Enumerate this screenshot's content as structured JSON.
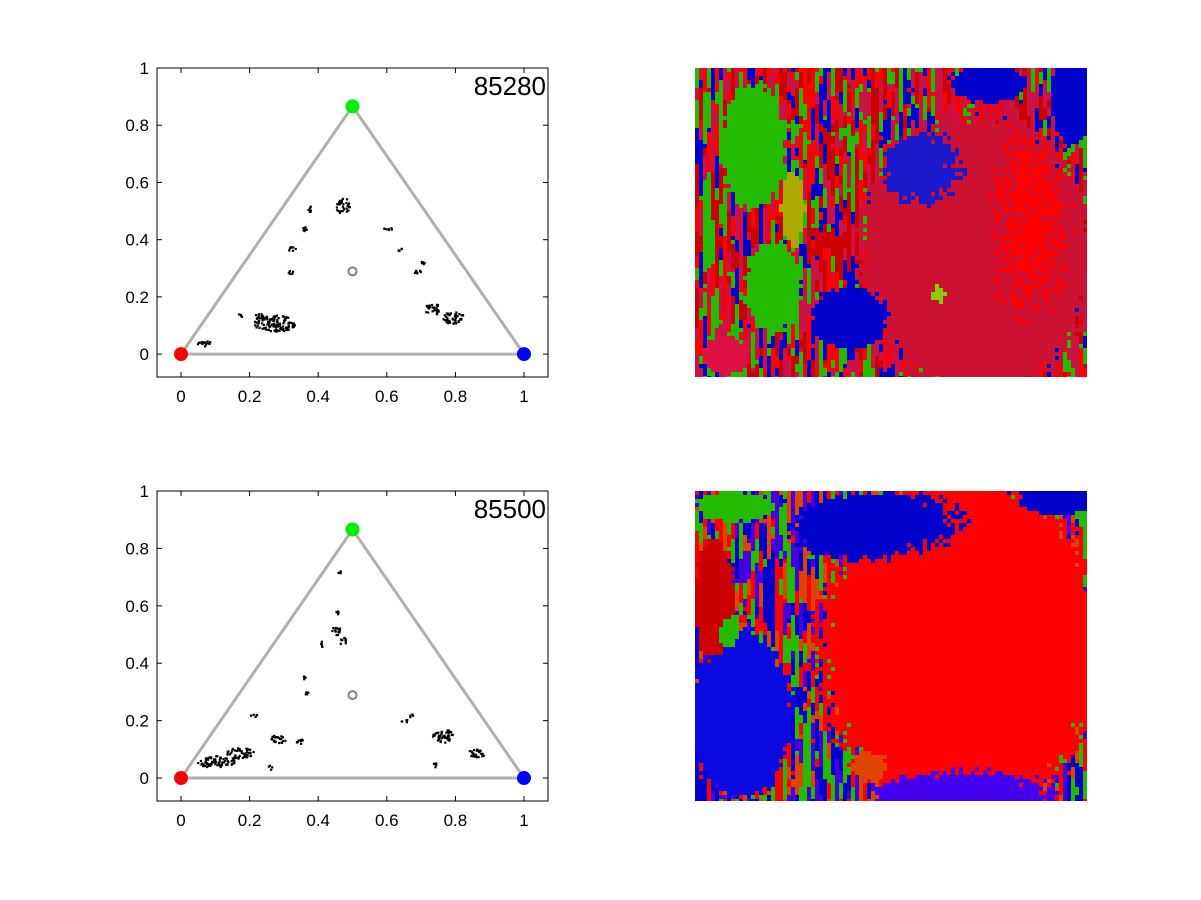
{
  "chart_data": [
    {
      "type": "scatter",
      "title": "",
      "xlabel": "",
      "ylabel": "",
      "annotation": "85280",
      "xlim": [
        -0.07,
        1.07
      ],
      "ylim": [
        -0.08,
        1.0
      ],
      "x_ticks": [
        "0",
        "0.2",
        "0.4",
        "0.6",
        "0.8",
        "1"
      ],
      "y_ticks": [
        "0",
        "0.2",
        "0.4",
        "0.6",
        "0.8",
        "1"
      ],
      "grid": false,
      "triangle": {
        "vertices": [
          [
            0,
            0
          ],
          [
            1,
            0
          ],
          [
            0.5,
            0.866
          ]
        ],
        "color": "#b0b0b0"
      },
      "corner_markers": [
        {
          "x": 0,
          "y": 0,
          "color": "#ff0000"
        },
        {
          "x": 1,
          "y": 0,
          "color": "#0000ff"
        },
        {
          "x": 0.5,
          "y": 0.866,
          "color": "#00ee00"
        }
      ],
      "centroid_marker": {
        "x": 0.5,
        "y": 0.289,
        "color": "#808080"
      },
      "clusters": [
        {
          "x": 0.27,
          "y": 0.11,
          "rx": 0.06,
          "ry": 0.03
        },
        {
          "x": 0.23,
          "y": 0.13,
          "rx": 0.02,
          "ry": 0.015
        },
        {
          "x": 0.065,
          "y": 0.04,
          "rx": 0.02,
          "ry": 0.012
        },
        {
          "x": 0.47,
          "y": 0.52,
          "rx": 0.02,
          "ry": 0.03
        },
        {
          "x": 0.375,
          "y": 0.51,
          "rx": 0.008,
          "ry": 0.012
        },
        {
          "x": 0.32,
          "y": 0.37,
          "rx": 0.012,
          "ry": 0.01
        },
        {
          "x": 0.355,
          "y": 0.44,
          "rx": 0.01,
          "ry": 0.01
        },
        {
          "x": 0.315,
          "y": 0.29,
          "rx": 0.01,
          "ry": 0.008
        },
        {
          "x": 0.6,
          "y": 0.44,
          "rx": 0.012,
          "ry": 0.008
        },
        {
          "x": 0.64,
          "y": 0.37,
          "rx": 0.01,
          "ry": 0.008
        },
        {
          "x": 0.69,
          "y": 0.29,
          "rx": 0.012,
          "ry": 0.01
        },
        {
          "x": 0.705,
          "y": 0.32,
          "rx": 0.008,
          "ry": 0.01
        },
        {
          "x": 0.73,
          "y": 0.16,
          "rx": 0.025,
          "ry": 0.02
        },
        {
          "x": 0.79,
          "y": 0.13,
          "rx": 0.035,
          "ry": 0.02
        },
        {
          "x": 0.17,
          "y": 0.14,
          "rx": 0.008,
          "ry": 0.008
        }
      ]
    },
    {
      "type": "heatmap",
      "title": "",
      "description_palette": [
        "#cc0000",
        "#ff0000",
        "#0000cc",
        "#22bb00",
        "#cc1144"
      ],
      "regions": [
        {
          "color": "#cc1133",
          "cx": 0.72,
          "cy": 0.6,
          "rx": 0.3,
          "ry": 0.45
        },
        {
          "color": "#ff0000",
          "cx": 0.82,
          "cy": 0.55,
          "rx": 0.15,
          "ry": 0.35
        },
        {
          "color": "#1a1acc",
          "cx": 0.6,
          "cy": 0.35,
          "rx": 0.12,
          "ry": 0.15
        },
        {
          "color": "#88cc00",
          "cx": 0.62,
          "cy": 0.72,
          "rx": 0.05,
          "ry": 0.05
        },
        {
          "color": "#aaaa00",
          "cx": 0.25,
          "cy": 0.45,
          "rx": 0.03,
          "ry": 0.12
        },
        {
          "color": "#22bb00",
          "cx": 0.15,
          "cy": 0.25,
          "rx": 0.08,
          "ry": 0.2
        },
        {
          "color": "#22bb00",
          "cx": 0.2,
          "cy": 0.7,
          "rx": 0.07,
          "ry": 0.15
        },
        {
          "color": "#0000cc",
          "cx": 0.96,
          "cy": 0.1,
          "rx": 0.05,
          "ry": 0.15
        },
        {
          "color": "#0000cc",
          "cx": 0.75,
          "cy": 0.05,
          "rx": 0.1,
          "ry": 0.06
        },
        {
          "color": "#0000cc",
          "cx": 0.4,
          "cy": 0.8,
          "rx": 0.1,
          "ry": 0.1
        },
        {
          "color": "#dd1144",
          "cx": 0.08,
          "cy": 0.92,
          "rx": 0.06,
          "ry": 0.06
        }
      ]
    },
    {
      "type": "scatter",
      "title": "",
      "xlabel": "",
      "ylabel": "",
      "annotation": "85500",
      "xlim": [
        -0.07,
        1.07
      ],
      "ylim": [
        -0.08,
        1.0
      ],
      "x_ticks": [
        "0",
        "0.2",
        "0.4",
        "0.6",
        "0.8",
        "1"
      ],
      "y_ticks": [
        "0",
        "0.2",
        "0.4",
        "0.6",
        "0.8",
        "1"
      ],
      "grid": false,
      "triangle": {
        "vertices": [
          [
            0,
            0
          ],
          [
            1,
            0
          ],
          [
            0.5,
            0.866
          ]
        ],
        "color": "#b0b0b0"
      },
      "corner_markers": [
        {
          "x": 0,
          "y": 0,
          "color": "#ff0000"
        },
        {
          "x": 1,
          "y": 0,
          "color": "#0000ff"
        },
        {
          "x": 0.5,
          "y": 0.866,
          "color": "#00ee00"
        }
      ],
      "centroid_marker": {
        "x": 0.5,
        "y": 0.289,
        "color": "#808080"
      },
      "clusters": [
        {
          "x": 0.1,
          "y": 0.06,
          "rx": 0.06,
          "ry": 0.02
        },
        {
          "x": 0.17,
          "y": 0.09,
          "rx": 0.04,
          "ry": 0.02
        },
        {
          "x": 0.28,
          "y": 0.14,
          "rx": 0.025,
          "ry": 0.015
        },
        {
          "x": 0.34,
          "y": 0.13,
          "rx": 0.015,
          "ry": 0.01
        },
        {
          "x": 0.26,
          "y": 0.04,
          "rx": 0.008,
          "ry": 0.008
        },
        {
          "x": 0.45,
          "y": 0.52,
          "rx": 0.012,
          "ry": 0.02
        },
        {
          "x": 0.47,
          "y": 0.48,
          "rx": 0.01,
          "ry": 0.015
        },
        {
          "x": 0.41,
          "y": 0.47,
          "rx": 0.008,
          "ry": 0.01
        },
        {
          "x": 0.455,
          "y": 0.58,
          "rx": 0.006,
          "ry": 0.008
        },
        {
          "x": 0.46,
          "y": 0.72,
          "rx": 0.005,
          "ry": 0.006
        },
        {
          "x": 0.355,
          "y": 0.35,
          "rx": 0.006,
          "ry": 0.008
        },
        {
          "x": 0.36,
          "y": 0.3,
          "rx": 0.008,
          "ry": 0.008
        },
        {
          "x": 0.21,
          "y": 0.22,
          "rx": 0.01,
          "ry": 0.008
        },
        {
          "x": 0.65,
          "y": 0.2,
          "rx": 0.01,
          "ry": 0.008
        },
        {
          "x": 0.76,
          "y": 0.15,
          "rx": 0.03,
          "ry": 0.025
        },
        {
          "x": 0.86,
          "y": 0.09,
          "rx": 0.025,
          "ry": 0.015
        },
        {
          "x": 0.74,
          "y": 0.05,
          "rx": 0.008,
          "ry": 0.01
        },
        {
          "x": 0.67,
          "y": 0.22,
          "rx": 0.008,
          "ry": 0.006
        }
      ]
    },
    {
      "type": "heatmap",
      "title": "",
      "description_palette": [
        "#ff0000",
        "#0000cc",
        "#22bb00",
        "#4400dd",
        "#dd4400"
      ],
      "regions": [
        {
          "color": "#ff0000",
          "cx": 0.68,
          "cy": 0.5,
          "rx": 0.36,
          "ry": 0.55
        },
        {
          "color": "#0a0ae0",
          "cx": 0.12,
          "cy": 0.72,
          "rx": 0.13,
          "ry": 0.27
        },
        {
          "color": "#0000cc",
          "cx": 0.5,
          "cy": 0.12,
          "rx": 0.25,
          "ry": 0.12
        },
        {
          "color": "#0000cc",
          "cx": 0.92,
          "cy": 0.03,
          "rx": 0.1,
          "ry": 0.05
        },
        {
          "color": "#4400ee",
          "cx": 0.68,
          "cy": 0.97,
          "rx": 0.22,
          "ry": 0.1
        },
        {
          "color": "#dd4400",
          "cx": 0.45,
          "cy": 0.88,
          "rx": 0.05,
          "ry": 0.05
        },
        {
          "color": "#22bb00",
          "cx": 0.1,
          "cy": 0.05,
          "rx": 0.1,
          "ry": 0.05
        },
        {
          "color": "#cc0000",
          "cx": 0.05,
          "cy": 0.35,
          "rx": 0.05,
          "ry": 0.2
        },
        {
          "color": "#22bb00",
          "cx": 0.08,
          "cy": 0.45,
          "rx": 0.03,
          "ry": 0.06
        }
      ]
    }
  ]
}
